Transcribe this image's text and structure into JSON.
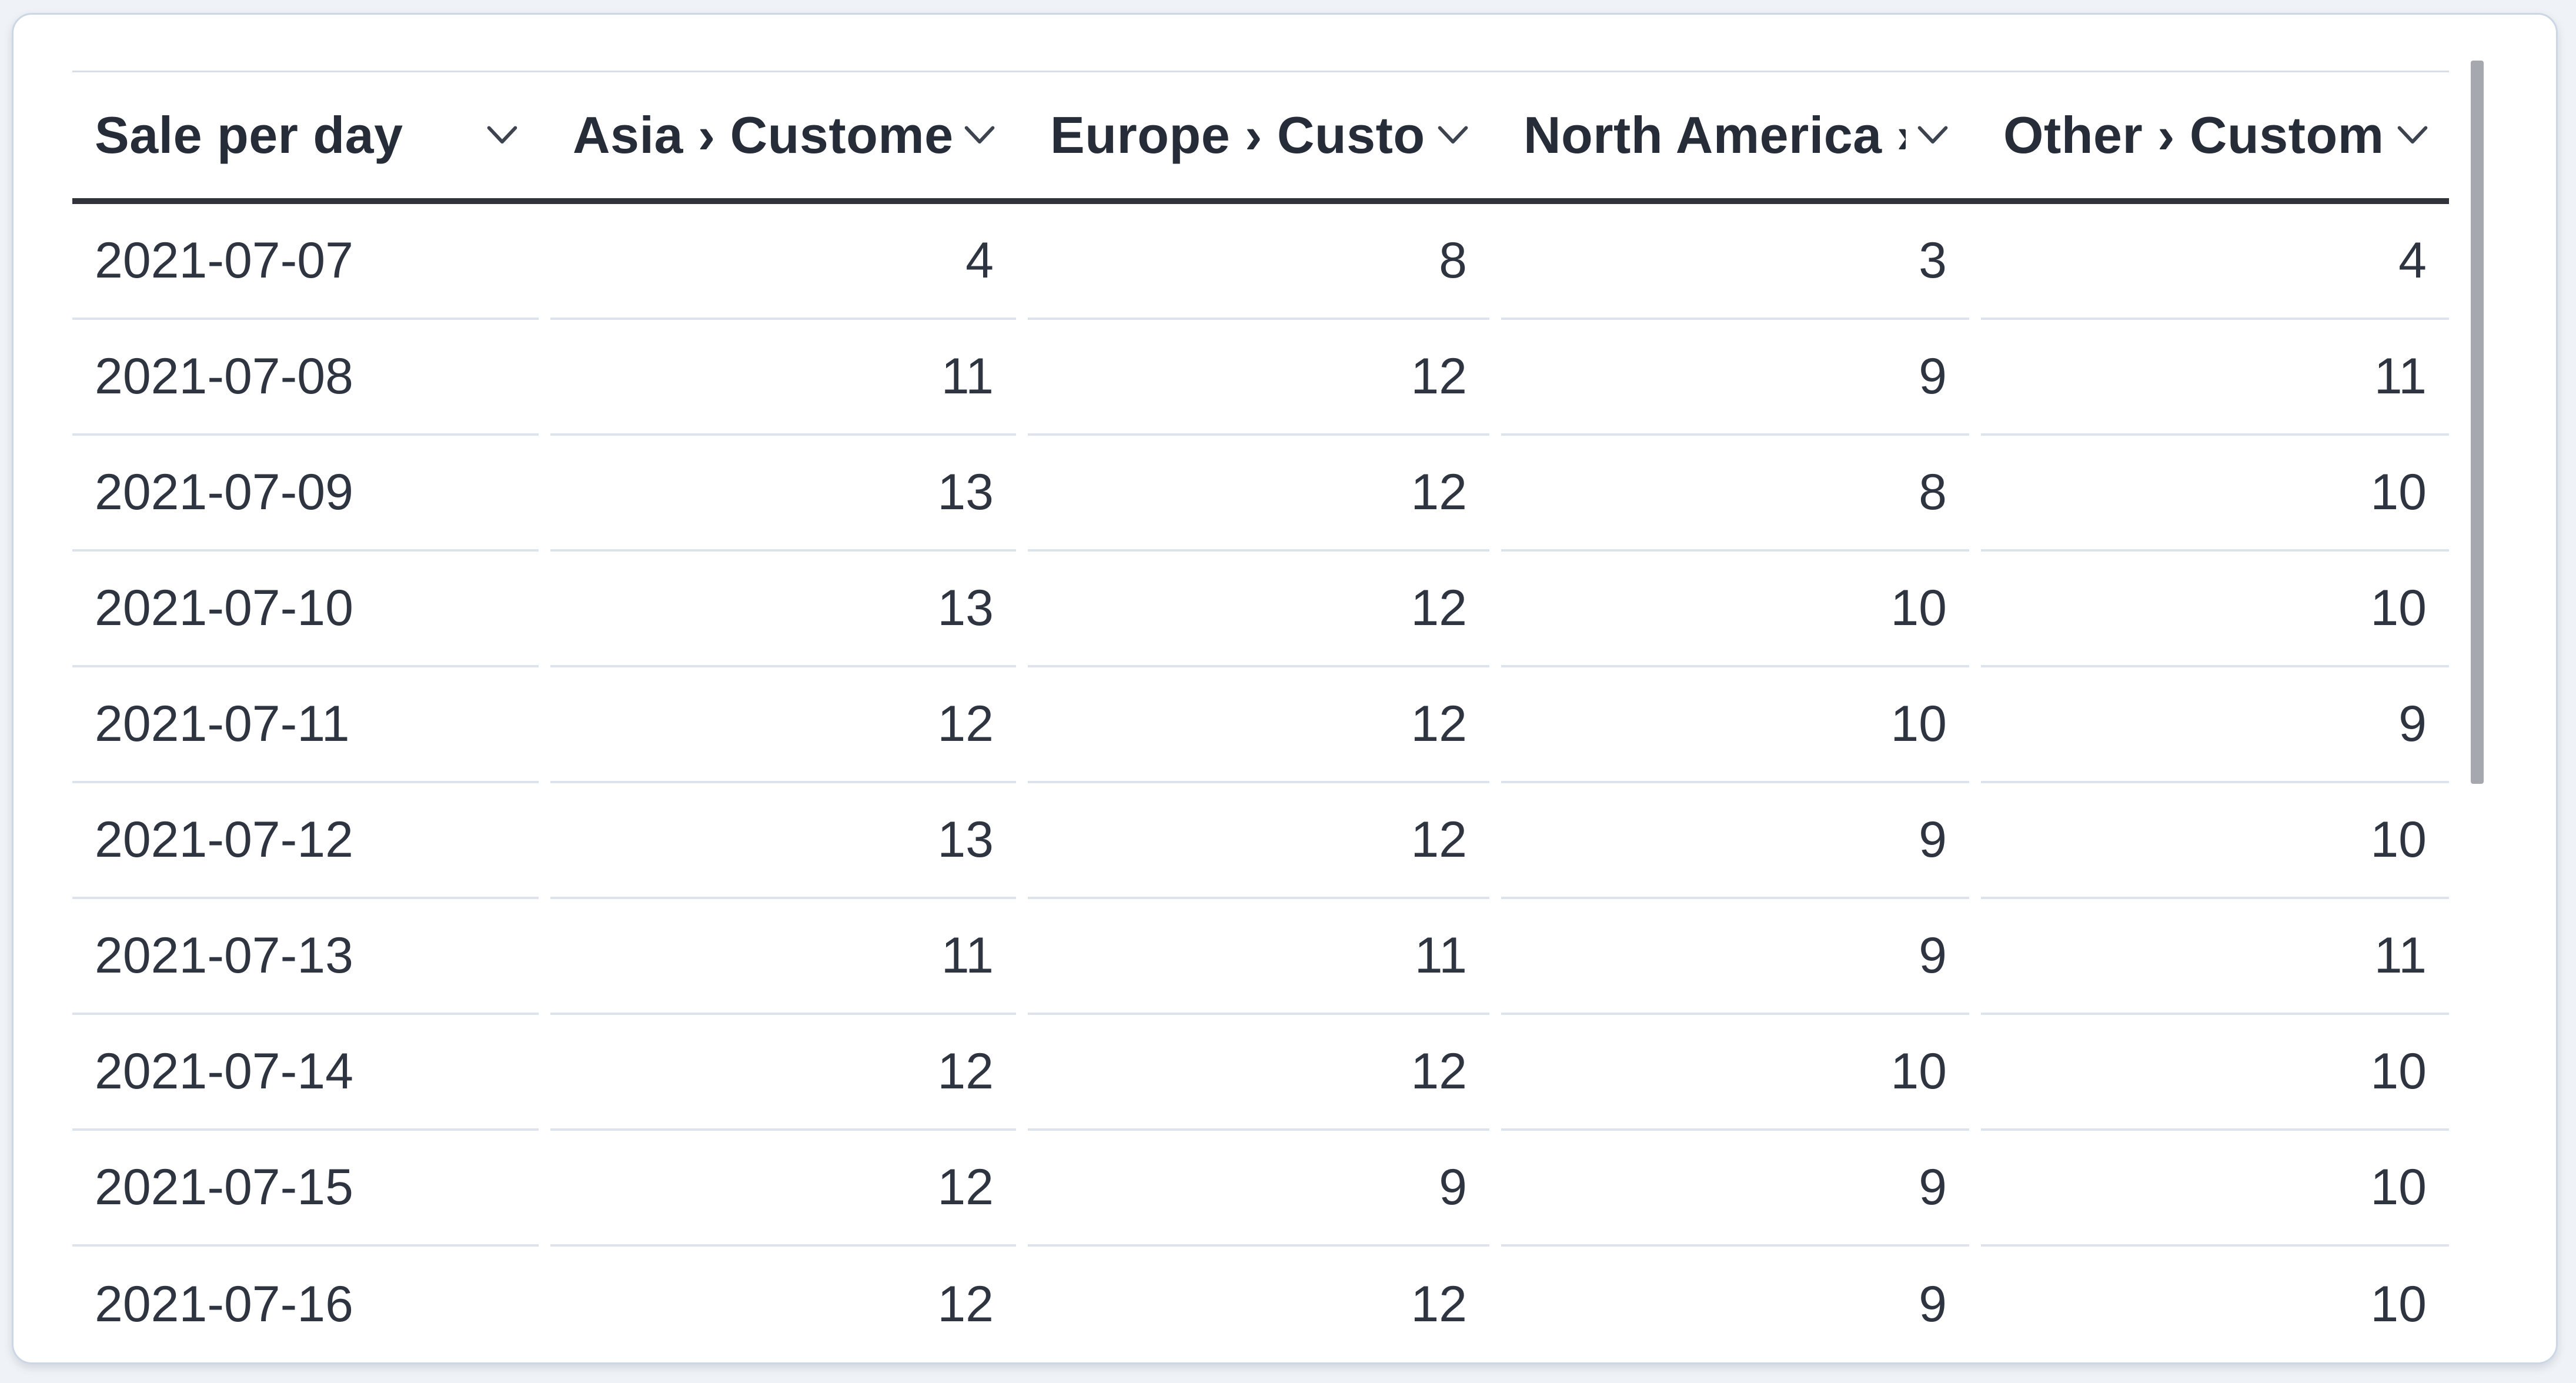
{
  "card": {
    "type": "table-question-card"
  },
  "table": {
    "columns": [
      {
        "id": "sale-per-day",
        "label": "Sale per day",
        "align": "left"
      },
      {
        "id": "asia-customers",
        "label": "Asia › Customers",
        "align": "right"
      },
      {
        "id": "europe-customers",
        "label": "Europe › Customers",
        "align": "right"
      },
      {
        "id": "north-america-customers",
        "label": "North America › Customers",
        "align": "right"
      },
      {
        "id": "other-customers",
        "label": "Other › Customers",
        "align": "right"
      }
    ],
    "rows": [
      [
        "2021-07-07",
        "4",
        "8",
        "3",
        "4"
      ],
      [
        "2021-07-08",
        "11",
        "12",
        "9",
        "11"
      ],
      [
        "2021-07-09",
        "13",
        "12",
        "8",
        "10"
      ],
      [
        "2021-07-10",
        "13",
        "12",
        "10",
        "10"
      ],
      [
        "2021-07-11",
        "12",
        "12",
        "10",
        "9"
      ],
      [
        "2021-07-12",
        "13",
        "12",
        "9",
        "10"
      ],
      [
        "2021-07-13",
        "11",
        "11",
        "9",
        "11"
      ],
      [
        "2021-07-14",
        "12",
        "12",
        "10",
        "10"
      ],
      [
        "2021-07-15",
        "12",
        "9",
        "9",
        "10"
      ],
      [
        "2021-07-16",
        "12",
        "12",
        "9",
        "10"
      ]
    ]
  },
  "icons": {
    "header_sort": "chevron-down-icon"
  },
  "scrollbar": {
    "orientation": "vertical",
    "thumb_color": "#a5a9af"
  },
  "colors": {
    "page_background": "#eff2f6",
    "card_background": "#ffffff",
    "card_border": "#ccd7e5",
    "header_text": "#262c38",
    "cell_text": "#2e3440",
    "header_underline": "#30333a",
    "row_separator": "#dde3ec",
    "top_rule": "#d8dee8",
    "chevron": "#3d4450"
  }
}
